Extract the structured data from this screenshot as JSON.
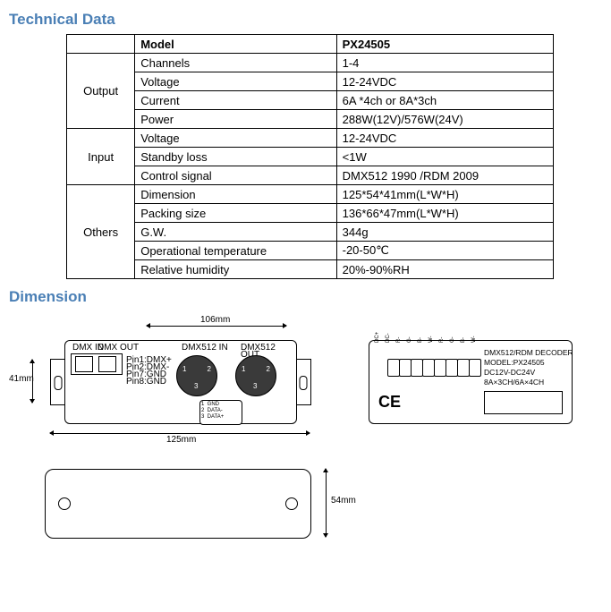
{
  "titles": {
    "technical": "Technical Data",
    "dimension": "Dimension"
  },
  "table": {
    "header": {
      "model": "Model",
      "value": "PX24505"
    },
    "groups": [
      {
        "name": "Output",
        "rows": [
          {
            "p": "Channels",
            "v": "1-4"
          },
          {
            "p": "Voltage",
            "v": "12-24VDC"
          },
          {
            "p": "Current",
            "v": "6A *4ch or 8A*3ch"
          },
          {
            "p": "Power",
            "v": "288W(12V)/576W(24V)"
          }
        ]
      },
      {
        "name": "Input",
        "rows": [
          {
            "p": "Voltage",
            "v": "12-24VDC"
          },
          {
            "p": "Standby loss",
            "v": "<1W"
          },
          {
            "p": "Control signal",
            "v": "DMX512 1990 /RDM 2009"
          }
        ]
      },
      {
        "name": "Others",
        "rows": [
          {
            "p": "Dimension",
            "v": "125*54*41mm(L*W*H)"
          },
          {
            "p": "Packing size",
            "v": "136*66*47mm(L*W*H)"
          },
          {
            "p": "G.W.",
            "v": "344g"
          },
          {
            "p": "Operational temperature",
            "v": "-20-50℃"
          },
          {
            "p": "Relative humidity",
            "v": "20%-90%RH"
          }
        ]
      }
    ]
  },
  "diagram": {
    "dims": {
      "w106": "106mm",
      "w125": "125mm",
      "h41": "41mm",
      "h54": "54mm"
    },
    "front": {
      "dmx_in": "DMX IN",
      "dmx_out": "DMX OUT",
      "dmx512_in": "DMX512 IN",
      "dmx512_out": "DMX512 OUT",
      "pins": "Pin1:DMX+\nPin2:DMX-\nPin7:GND\nPin8:GND",
      "gnd_block": "1  GND\n2  DATA-\n3  DATA+",
      "pin_nums": [
        "1",
        "2",
        "3"
      ]
    },
    "back": {
      "top_labels": [
        "DC+",
        "DC-",
        "R-",
        "G-",
        "B-",
        "W-",
        "R-",
        "G-",
        "B-",
        "W-"
      ],
      "text": "DMX512/RDM DECODER\nMODEL:PX24505\nDC12V-DC24V\n8A×3CH/6A×4CH",
      "ce": "CE"
    }
  },
  "style": {
    "accent": "#4a7fb5"
  }
}
